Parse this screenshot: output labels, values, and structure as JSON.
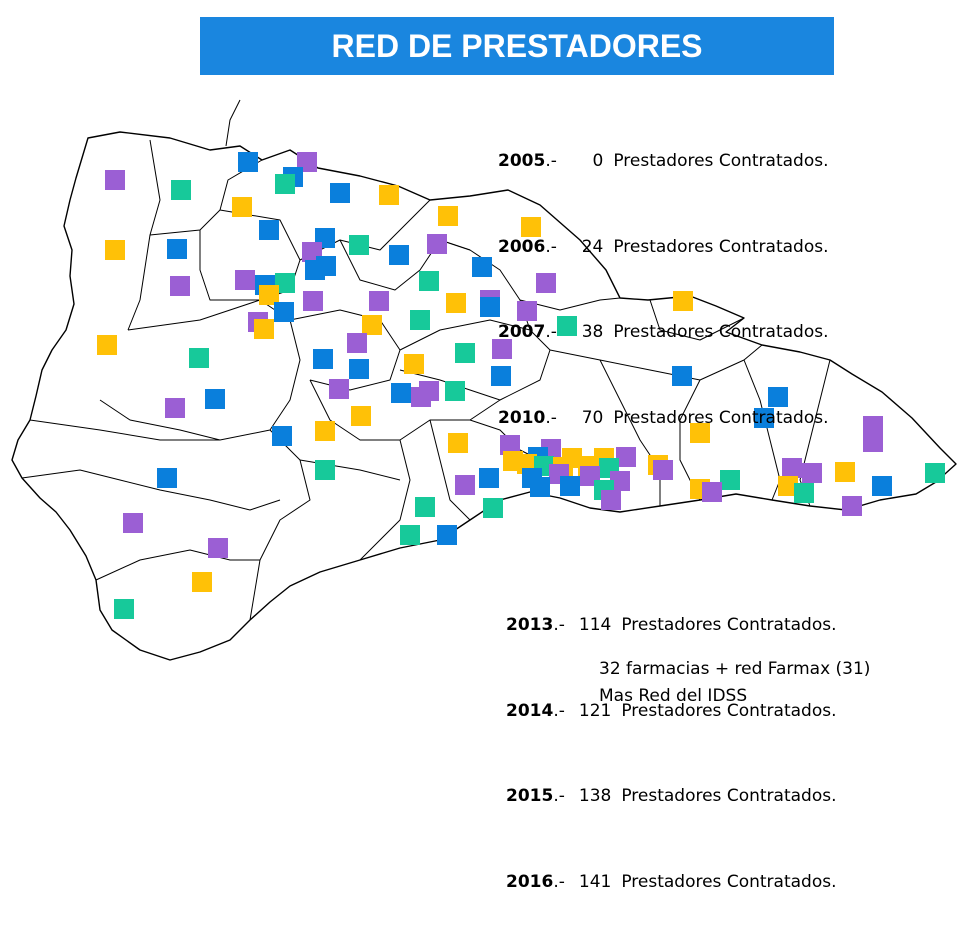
{
  "title": "RED DE PRESTADORES",
  "colors": {
    "banner": "#1a86df",
    "blue": "#0a7fdc",
    "purple": "#9b5fd4",
    "green": "#17c99a",
    "yellow": "#ffc107",
    "border": "#000000"
  },
  "stats_top": [
    {
      "year": "2005",
      "sep": ".-",
      "count": "0",
      "label": "Prestadores Contratados."
    },
    {
      "year": "2006",
      "sep": ".-",
      "count": "24",
      "label": "Prestadores Contratados."
    },
    {
      "year": "2007",
      "sep": ".-",
      "count": "38",
      "label": "Prestadores Contratados."
    },
    {
      "year": "2010",
      "sep": ".-",
      "count": "70",
      "label": "Prestadores Contratados."
    }
  ],
  "stats_bottom": [
    {
      "year": "2013",
      "sep": ".-",
      "count": "114",
      "label": "Prestadores Contratados."
    },
    {
      "year": "2014",
      "sep": ".-",
      "count": "121",
      "label": "Prestadores Contratados."
    },
    {
      "year": "2015",
      "sep": ".-",
      "count": "138",
      "label": "Prestadores Contratados."
    },
    {
      "year": "2016",
      "sep": ".-",
      "count": "141",
      "label": "Prestadores Contratados."
    }
  ],
  "notes": {
    "line1": "32 farmacias + red Farmax (31)",
    "line2": "Mas Red del IDSS"
  }
}
